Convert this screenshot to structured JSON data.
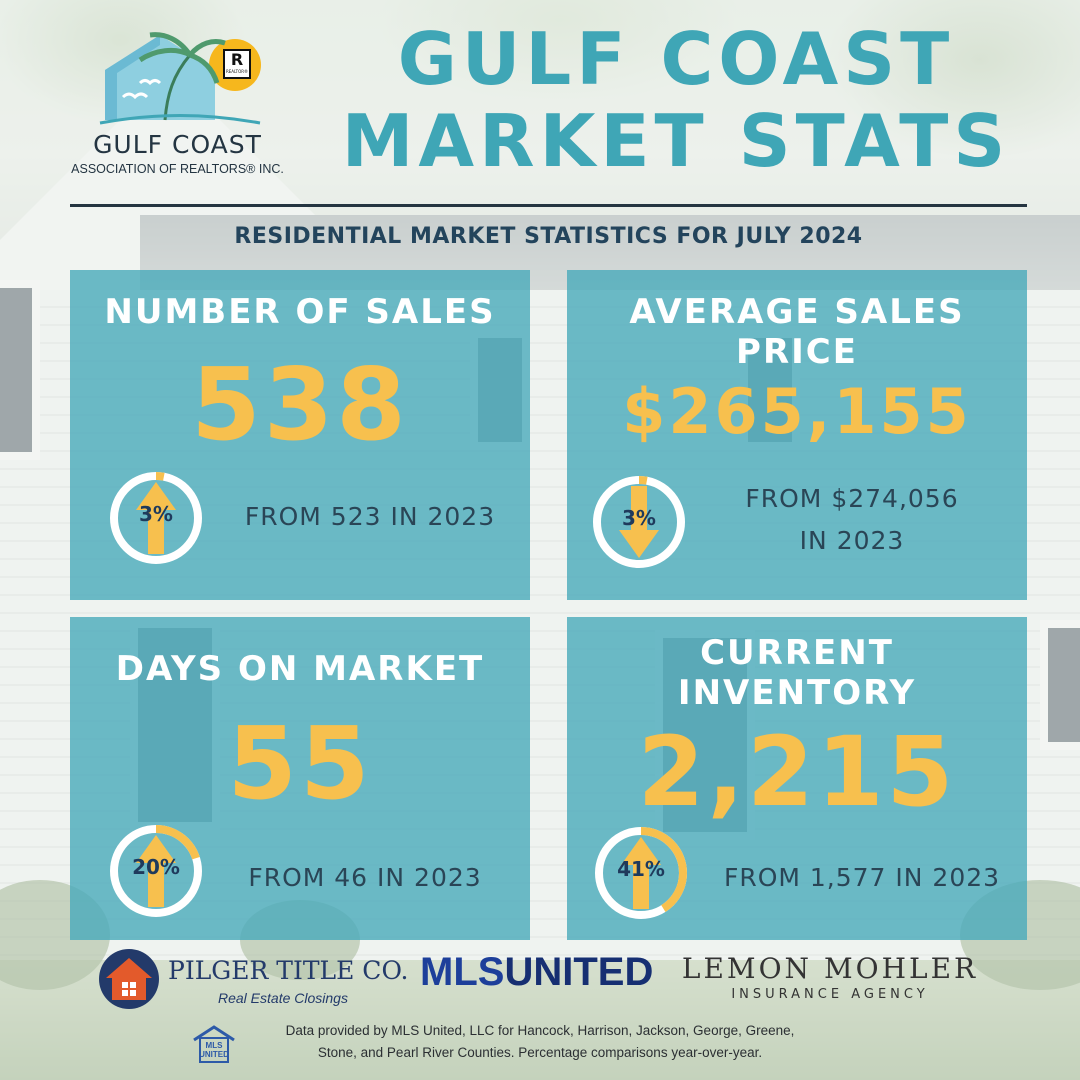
{
  "header": {
    "logo": {
      "realtor_mark": "R",
      "realtor_text": "REALTOR®",
      "org_name": "GULF COAST",
      "org_subtitle": "ASSOCIATION OF REALTORS® INC."
    },
    "title_line1": "GULF COAST",
    "title_line2": "MARKET STATS",
    "subtitle": "RESIDENTIAL MARKET STATISTICS FOR JULY 2024"
  },
  "colors": {
    "teal_title": "#3fa6b6",
    "card_bg": "#48aaba",
    "value_yellow": "#f7c04e",
    "dark_navy": "#23445c"
  },
  "stats": [
    {
      "title": "NUMBER OF SALES",
      "value": "538",
      "change_pct": "3%",
      "direction": "up",
      "arrow_icon": "arrow-up-icon",
      "compare_line1": "FROM 523 IN 2023",
      "compare_line2": ""
    },
    {
      "title_line1": "AVERAGE SALES",
      "title_line2": "PRICE",
      "value": "$265,155",
      "change_pct": "3%",
      "direction": "down",
      "arrow_icon": "arrow-down-icon",
      "compare_line1": "FROM $274,056",
      "compare_line2": "IN 2023"
    },
    {
      "title": "DAYS ON MARKET",
      "value": "55",
      "change_pct": "20%",
      "direction": "up",
      "arrow_icon": "arrow-up-icon",
      "compare_line1": "FROM 46 IN 2023",
      "compare_line2": ""
    },
    {
      "title_line1": "CURRENT",
      "title_line2": "INVENTORY",
      "value": "2,215",
      "change_pct": "41%",
      "direction": "up",
      "arrow_icon": "arrow-up-icon",
      "compare_line1": "FROM 1,577 IN 2023",
      "compare_line2": ""
    }
  ],
  "footer": {
    "sponsors": {
      "pilger_name": "PILGER TITLE CO.",
      "pilger_tagline": "Real Estate Closings",
      "mls_part1": "MLS",
      "mls_part2": "UNITED",
      "lemon_name": "LEMON MOHLER",
      "lemon_sub": "INSURANCE AGENCY"
    },
    "mls_badge_line1": "MLS",
    "mls_badge_line2": "UNITED",
    "disclaimer_line1": "Data provided by MLS United, LLC for Hancock, Harrison, Jackson, George, Greene,",
    "disclaimer_line2": "Stone, and Pearl River Counties. Percentage comparisons year-over-year."
  }
}
